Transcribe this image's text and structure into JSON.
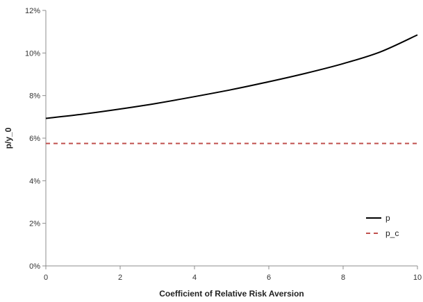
{
  "chart_data": {
    "type": "line",
    "title": "",
    "xlabel": "Coefficient of Relative Risk Aversion",
    "ylabel": "p/y_0",
    "xlim": [
      0,
      10
    ],
    "ylim": [
      0,
      12
    ],
    "x_ticks": [
      0,
      2,
      4,
      6,
      8,
      10
    ],
    "y_ticks": [
      0,
      2,
      4,
      6,
      8,
      10,
      12
    ],
    "y_tick_labels": [
      "0%",
      "2%",
      "4%",
      "6%",
      "8%",
      "10%",
      "12%"
    ],
    "grid": false,
    "legend_position": "bottom-right",
    "series": [
      {
        "name": "p",
        "color": "#000000",
        "style": "solid",
        "x": [
          0,
          1,
          2,
          3,
          4,
          5,
          6,
          7,
          8,
          9,
          10
        ],
        "y": [
          6.93,
          7.13,
          7.37,
          7.64,
          7.95,
          8.28,
          8.65,
          9.05,
          9.5,
          10.05,
          10.85
        ]
      },
      {
        "name": "p_c",
        "color": "#c0504d",
        "style": "dashed",
        "x": [
          0,
          10
        ],
        "y": [
          5.75,
          5.75
        ]
      }
    ]
  }
}
